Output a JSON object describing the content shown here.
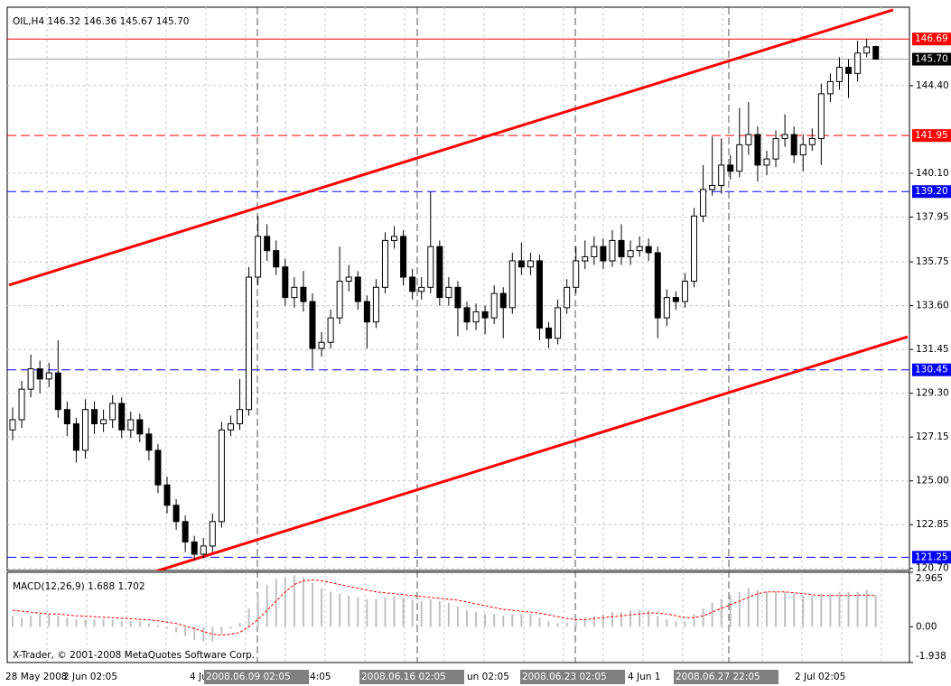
{
  "chart_data": {
    "type": "candlestick",
    "title": "OIL,H4 146.32 146.36 145.67 145.70",
    "copyright": "X-Trader, © 2001-2008 MetaQuotes Software Corp.",
    "open": [
      127.5,
      128.0,
      129.5,
      130.5,
      130.0,
      130.3,
      128.5,
      127.8,
      126.5,
      128.5,
      127.8,
      128.0,
      128.8,
      127.5,
      128.0,
      127.3,
      126.5,
      124.8,
      123.8,
      123.0,
      122.0,
      121.4,
      121.8,
      123.0,
      127.5,
      127.8,
      128.5,
      135.0,
      137.0,
      136.3,
      135.5,
      134.0,
      134.5,
      133.8,
      131.5,
      131.8,
      133.0,
      134.8,
      135.0,
      133.8,
      132.8,
      134.5,
      136.8,
      137.0,
      135.0,
      134.3,
      134.5,
      136.5,
      134.0,
      134.5,
      133.5,
      132.8,
      133.3,
      133.0,
      134.2,
      133.5,
      135.8,
      135.5,
      135.8,
      132.5,
      132.0,
      133.5,
      134.5,
      135.8,
      136.0,
      136.5,
      135.8,
      136.8,
      136.0,
      136.3,
      136.5,
      136.2,
      133.0,
      134.0,
      133.8,
      134.8,
      138.0,
      139.3,
      139.5,
      140.5,
      140.2,
      141.5,
      142.0,
      140.5,
      140.8,
      141.8,
      142.0,
      141.0,
      141.5,
      141.8,
      144.0,
      144.6,
      145.3,
      145.0,
      146.0,
      146.32
    ],
    "high": [
      128.6,
      129.9,
      131.2,
      130.9,
      130.8,
      131.9,
      128.9,
      128.1,
      129.0,
      128.9,
      128.5,
      129.2,
      129.1,
      128.4,
      128.3,
      127.6,
      126.8,
      125.2,
      124.1,
      123.3,
      122.3,
      122.2,
      123.4,
      127.9,
      128.2,
      130.0,
      135.5,
      138.0,
      137.6,
      136.8,
      135.9,
      135.0,
      135.3,
      134.2,
      132.3,
      133.4,
      136.5,
      135.6,
      135.3,
      134.1,
      134.9,
      137.2,
      137.5,
      137.3,
      135.4,
      135.0,
      139.2,
      136.8,
      135.0,
      134.8,
      133.8,
      133.7,
      133.6,
      134.6,
      134.5,
      136.2,
      136.7,
      136.2,
      136.1,
      132.8,
      133.9,
      134.9,
      136.5,
      136.8,
      137.0,
      136.9,
      137.3,
      137.6,
      136.8,
      137.0,
      136.9,
      136.5,
      134.4,
      134.3,
      135.2,
      138.4,
      140.5,
      141.9,
      141.8,
      141.0,
      143.3,
      143.6,
      142.4,
      141.2,
      142.2,
      143.0,
      142.4,
      142.0,
      142.3,
      144.5,
      145.0,
      145.8,
      145.7,
      146.6,
      146.7,
      146.36
    ],
    "low": [
      127.0,
      127.6,
      129.1,
      129.3,
      129.6,
      128.1,
      127.2,
      125.9,
      126.1,
      127.3,
      127.4,
      127.6,
      127.1,
      127.1,
      126.9,
      126.0,
      124.4,
      123.4,
      122.6,
      121.5,
      121.1,
      121.2,
      121.5,
      122.7,
      127.2,
      127.5,
      128.2,
      134.6,
      135.8,
      135.1,
      133.6,
      133.5,
      133.3,
      130.5,
      131.1,
      131.5,
      132.7,
      134.3,
      133.4,
      131.5,
      132.5,
      134.2,
      136.4,
      134.6,
      133.9,
      133.9,
      134.2,
      133.6,
      133.6,
      132.1,
      132.4,
      132.4,
      132.2,
      132.7,
      132.0,
      133.2,
      135.1,
      135.1,
      131.9,
      131.5,
      131.7,
      133.2,
      134.2,
      135.4,
      135.6,
      135.4,
      135.5,
      135.6,
      135.6,
      136.0,
      135.8,
      132.0,
      132.6,
      133.4,
      133.5,
      134.5,
      137.7,
      139.0,
      139.1,
      139.8,
      139.9,
      141.0,
      139.7,
      140.0,
      140.4,
      141.4,
      140.6,
      140.2,
      141.2,
      140.5,
      143.6,
      144.2,
      143.8,
      144.6,
      145.8,
      145.67
    ],
    "close": [
      128.0,
      129.5,
      130.5,
      130.0,
      130.3,
      128.5,
      127.8,
      126.5,
      128.5,
      127.8,
      128.0,
      128.8,
      127.5,
      128.0,
      127.3,
      126.5,
      124.8,
      123.8,
      123.0,
      122.0,
      121.4,
      121.8,
      123.0,
      127.5,
      127.8,
      128.5,
      135.0,
      137.0,
      136.3,
      135.5,
      134.0,
      134.5,
      133.8,
      131.5,
      131.8,
      133.0,
      134.8,
      135.0,
      133.8,
      132.8,
      134.5,
      136.8,
      137.0,
      135.0,
      134.3,
      134.5,
      136.5,
      134.0,
      134.5,
      133.5,
      132.8,
      133.3,
      133.0,
      134.2,
      133.5,
      135.8,
      135.5,
      135.8,
      132.5,
      132.0,
      133.5,
      134.5,
      135.8,
      136.0,
      136.5,
      135.8,
      136.8,
      136.0,
      136.3,
      136.5,
      136.2,
      133.0,
      134.0,
      133.8,
      134.8,
      138.0,
      139.3,
      139.5,
      140.5,
      140.2,
      141.5,
      142.0,
      140.5,
      140.8,
      141.8,
      142.0,
      141.0,
      141.5,
      141.8,
      144.0,
      144.6,
      145.3,
      145.0,
      146.0,
      146.3,
      145.7
    ],
    "ylim": [
      120.6,
      148.25
    ],
    "yticks": [
      {
        "value": 144.4,
        "label": "144.40"
      },
      {
        "value": 140.1,
        "label": "140.10"
      },
      137.95,
      135.75,
      {
        "value": 133.6,
        "label": "133.60"
      },
      131.45,
      {
        "value": 129.3,
        "label": "129.30"
      },
      127.15,
      {
        "value": 125,
        "label": "125.00"
      },
      122.85,
      {
        "value": 120.7,
        "label": "120.70"
      }
    ],
    "levels": [
      {
        "value": 146.69,
        "label": "146.69",
        "color": "#ff0000",
        "style": "solid"
      },
      {
        "value": 145.7,
        "label": "145.70",
        "color": "#000000",
        "style": "gray"
      },
      {
        "value": 141.95,
        "label": "141.95",
        "color": "#ff0000",
        "style": "dashed"
      },
      {
        "value": 139.2,
        "label": "139.20",
        "color": "#0000ff",
        "style": "dashed"
      },
      {
        "value": 130.45,
        "label": "130.45",
        "color": "#0000ff",
        "style": "dashed"
      },
      {
        "value": 121.25,
        "label": "121.25",
        "color": "#0000ff",
        "style": "dashed"
      }
    ],
    "trendlines": [
      {
        "x": [
          -0.4,
          96.9
        ],
        "y": [
          134.61,
          148.12
        ]
      },
      {
        "x": [
          15.5,
          98.5
        ],
        "y": [
          120.52,
          132.07
        ]
      }
    ],
    "trend_color": "#ff0000",
    "xlabels": [
      "28 May 2008",
      "2 Jun 02:05",
      "4 Ju",
      "4:05",
      "un 02:05",
      "4 Jun 1",
      "2 Jul 02:05"
    ],
    "markers": [
      "2008.06.09 02:05",
      "2008.06.16 02:05",
      "2008.06.23 02:05",
      "2008.06.27 22:05"
    ],
    "macd": {
      "label": "MACD(12,26,9) 1.688 1.702",
      "histogram": [
        0.6,
        0.5,
        0.6,
        0.7,
        0.7,
        0.6,
        0.5,
        0.4,
        0.4,
        0.4,
        0.4,
        0.4,
        0.3,
        0.3,
        0.3,
        0.2,
        0.1,
        -0.1,
        -0.3,
        -0.5,
        -0.7,
        -0.8,
        -0.8,
        -0.4,
        -0.1,
        0.2,
        1.0,
        1.8,
        2.3,
        2.6,
        2.7,
        2.8,
        2.7,
        2.4,
        2.1,
        1.9,
        1.8,
        1.7,
        1.6,
        1.5,
        1.5,
        1.6,
        1.7,
        1.6,
        1.5,
        1.4,
        1.5,
        1.4,
        1.3,
        1.1,
        0.9,
        0.8,
        0.7,
        0.7,
        0.6,
        0.7,
        0.7,
        0.7,
        0.5,
        0.3,
        0.2,
        0.2,
        0.3,
        0.5,
        0.6,
        0.7,
        0.8,
        0.8,
        0.9,
        0.9,
        0.9,
        0.6,
        0.4,
        0.3,
        0.3,
        0.7,
        1.0,
        1.3,
        1.5,
        1.7,
        1.9,
        2.1,
        2.0,
        1.9,
        1.9,
        1.9,
        1.8,
        1.7,
        1.7,
        1.8,
        1.8,
        1.9,
        1.9,
        1.9,
        2.0,
        1.688
      ],
      "signal": [
        0.9,
        0.85,
        0.8,
        0.75,
        0.7,
        0.7,
        0.65,
        0.6,
        0.58,
        0.55,
        0.52,
        0.5,
        0.47,
        0.44,
        0.41,
        0.38,
        0.33,
        0.26,
        0.18,
        0.05,
        -0.1,
        -0.25,
        -0.4,
        -0.45,
        -0.4,
        -0.3,
        0.0,
        0.4,
        0.9,
        1.4,
        1.9,
        2.3,
        2.5,
        2.55,
        2.5,
        2.4,
        2.3,
        2.2,
        2.1,
        2.0,
        1.9,
        1.85,
        1.8,
        1.75,
        1.7,
        1.65,
        1.6,
        1.55,
        1.5,
        1.45,
        1.35,
        1.25,
        1.15,
        1.05,
        0.95,
        0.9,
        0.85,
        0.8,
        0.75,
        0.65,
        0.55,
        0.45,
        0.4,
        0.4,
        0.45,
        0.5,
        0.55,
        0.6,
        0.65,
        0.7,
        0.75,
        0.75,
        0.7,
        0.6,
        0.5,
        0.5,
        0.6,
        0.8,
        1.0,
        1.2,
        1.4,
        1.6,
        1.8,
        1.9,
        1.9,
        1.9,
        1.85,
        1.8,
        1.75,
        1.7,
        1.7,
        1.7,
        1.7,
        1.72,
        1.72,
        1.702
      ],
      "hist_color": "#c0c0c0",
      "signal_color": "#ff0000",
      "y2lim": [
        -1.938,
        2.965
      ],
      "y2ticks": [
        2.965,
        {
          "value": 0,
          "label": "0.00"
        },
        -1.938
      ]
    }
  }
}
